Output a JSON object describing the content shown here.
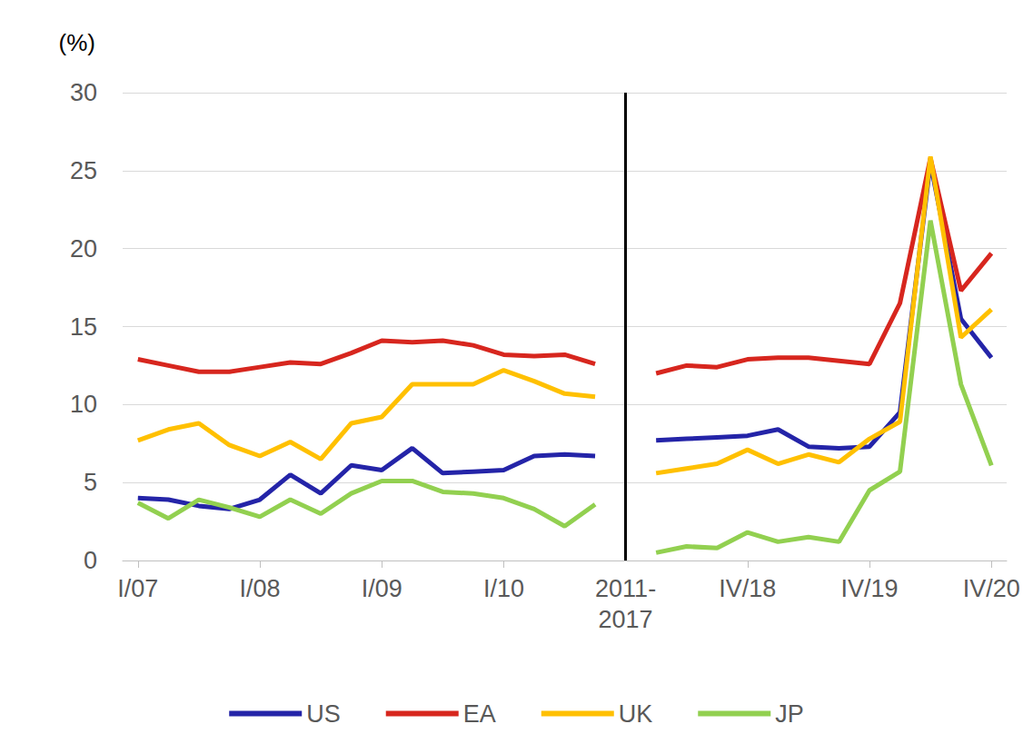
{
  "chart_data": {
    "type": "line",
    "y_label": "(%)",
    "categories": [
      "I/07",
      null,
      null,
      null,
      "I/08",
      null,
      null,
      null,
      "I/09",
      null,
      null,
      null,
      "I/10",
      null,
      null,
      null,
      "2011-2017",
      null,
      null,
      null,
      "IV/18",
      null,
      null,
      null,
      "IV/19",
      null,
      null,
      null,
      "IV/20"
    ],
    "series": [
      {
        "name": "US",
        "color": "#2424a8",
        "values": [
          4.0,
          3.9,
          3.5,
          3.3,
          3.9,
          5.5,
          4.3,
          6.1,
          5.8,
          7.2,
          5.6,
          5.7,
          5.8,
          6.7,
          6.8,
          6.7,
          null,
          7.7,
          7.8,
          7.9,
          8.0,
          8.4,
          7.3,
          7.2,
          7.3,
          9.5,
          25.5,
          15.5,
          13.0
        ]
      },
      {
        "name": "EA",
        "color": "#d7261e",
        "values": [
          12.9,
          12.5,
          12.1,
          12.1,
          12.4,
          12.7,
          12.6,
          13.3,
          14.1,
          14.0,
          14.1,
          13.8,
          13.2,
          13.1,
          13.2,
          12.6,
          null,
          12.0,
          12.5,
          12.4,
          12.9,
          13.0,
          13.0,
          12.8,
          12.6,
          16.5,
          25.8,
          17.3,
          19.7
        ]
      },
      {
        "name": "UK",
        "color": "#ffc000",
        "values": [
          7.7,
          8.4,
          8.8,
          7.4,
          6.7,
          7.6,
          6.5,
          8.8,
          9.2,
          11.3,
          11.3,
          11.3,
          12.2,
          11.5,
          10.7,
          10.5,
          null,
          5.6,
          5.9,
          6.2,
          7.1,
          6.2,
          6.8,
          6.3,
          7.8,
          8.9,
          25.9,
          14.3,
          16.1
        ]
      },
      {
        "name": "JP",
        "color": "#92d050",
        "values": [
          3.7,
          2.7,
          3.9,
          3.4,
          2.8,
          3.9,
          3.0,
          4.3,
          5.1,
          5.1,
          4.4,
          4.3,
          4.0,
          3.3,
          2.2,
          3.6,
          null,
          0.5,
          0.9,
          0.8,
          1.8,
          1.2,
          1.5,
          1.2,
          4.5,
          5.7,
          21.8,
          11.3,
          6.1
        ]
      }
    ],
    "ylim": [
      0,
      30
    ],
    "yticks": [
      0,
      5,
      10,
      15,
      20,
      25,
      30
    ],
    "grid": true,
    "legend": "bottom"
  }
}
